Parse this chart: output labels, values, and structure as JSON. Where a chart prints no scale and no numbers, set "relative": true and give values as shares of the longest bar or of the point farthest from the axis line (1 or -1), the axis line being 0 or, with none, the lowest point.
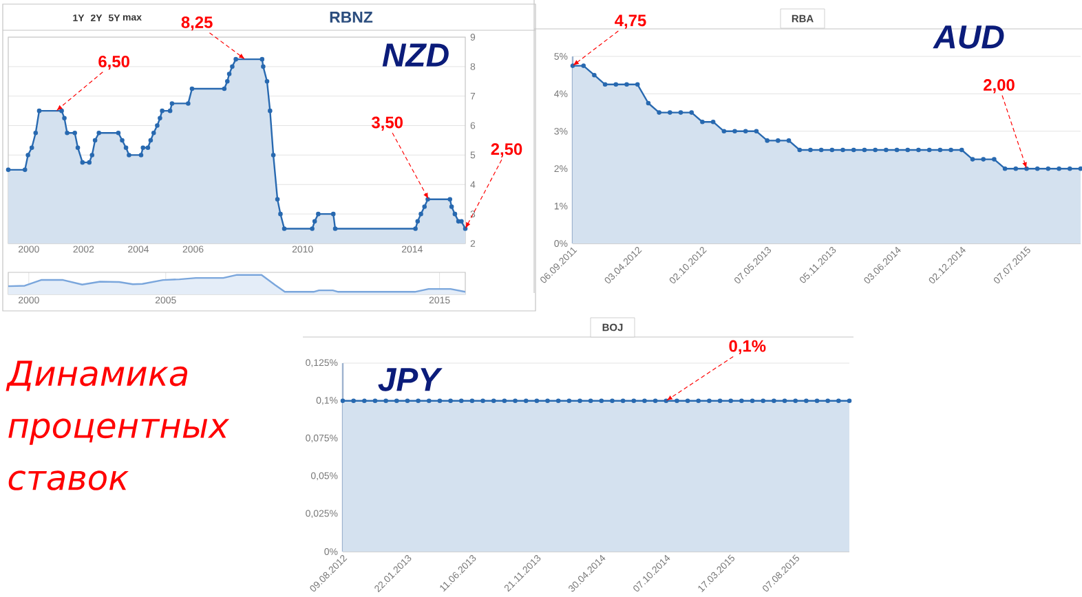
{
  "chart_data": [
    {
      "type": "area",
      "title": "RBNZ",
      "subtitle": "NZD",
      "x": [
        1999.25,
        1999.86,
        1999.97,
        2000.11,
        2000.25,
        2000.38,
        2001.2,
        2001.3,
        2001.4,
        2001.68,
        2001.79,
        2001.96,
        2002.21,
        2002.31,
        2002.42,
        2002.56,
        2003.27,
        2003.41,
        2003.55,
        2003.66,
        2004.1,
        2004.17,
        2004.35,
        2004.45,
        2004.56,
        2004.69,
        2004.79,
        2004.87,
        2005.16,
        2005.23,
        2005.82,
        2005.96,
        2007.14,
        2007.25,
        2007.32,
        2007.43,
        2007.56,
        2008.52,
        2008.56,
        2008.7,
        2008.81,
        2008.93,
        2009.08,
        2009.19,
        2009.33,
        2010.35,
        2010.44,
        2010.57,
        2011.12,
        2011.19,
        2014.12,
        2014.2,
        2014.32,
        2014.45,
        2014.57,
        2015.38,
        2015.44,
        2015.56,
        2015.69,
        2015.8,
        2015.94
      ],
      "values": [
        4.5,
        4.5,
        5.0,
        5.25,
        5.75,
        6.5,
        6.5,
        6.25,
        5.75,
        5.75,
        5.25,
        4.75,
        4.75,
        5.0,
        5.5,
        5.75,
        5.75,
        5.5,
        5.25,
        5.0,
        5.0,
        5.25,
        5.25,
        5.5,
        5.75,
        6.0,
        6.25,
        6.5,
        6.5,
        6.75,
        6.75,
        7.25,
        7.25,
        7.5,
        7.75,
        8.0,
        8.25,
        8.25,
        8.0,
        7.5,
        6.5,
        5.0,
        3.5,
        3.0,
        2.5,
        2.5,
        2.75,
        3.0,
        3.0,
        2.5,
        2.5,
        2.75,
        3.0,
        3.25,
        3.5,
        3.5,
        3.25,
        3.0,
        2.75,
        2.75,
        2.5
      ],
      "color": "#2869b0",
      "xlim": [
        1999.25,
        2015.94
      ],
      "ylim": [
        2,
        9
      ],
      "xticks": [
        2000,
        2002,
        2004,
        2006,
        2010,
        2014
      ],
      "yticks": [
        2,
        3,
        4,
        5,
        6,
        7,
        8,
        9
      ],
      "grid": "y",
      "marker": "circle",
      "annotations": [
        "1Y",
        "2Y",
        "5Y",
        "max",
        {
          "text": "6,50",
          "x": 2001.0,
          "y": 6.5
        },
        {
          "text": "8,25",
          "x": 2007.9,
          "y": 8.25
        },
        {
          "text": "3,50",
          "x": 2014.6,
          "y": 3.5
        },
        {
          "text": "2,50",
          "x": 2015.94,
          "y": 2.5
        }
      ]
    },
    {
      "type": "area",
      "relative": true,
      "x": [
        1999.25,
        1999.85,
        2000.45,
        2001.25,
        2001.95,
        2002.6,
        2003.3,
        2003.8,
        2004.15,
        2004.9,
        2005.5,
        2006.1,
        2007.1,
        2007.6,
        2008.5,
        2009.0,
        2009.35,
        2010.4,
        2010.6,
        2011.1,
        2011.3,
        2014.1,
        2014.6,
        2015.4,
        2015.94
      ],
      "values": [
        0.33,
        0.36,
        0.7,
        0.7,
        0.43,
        0.6,
        0.58,
        0.45,
        0.47,
        0.7,
        0.74,
        0.82,
        0.82,
        1.0,
        1.0,
        0.4,
        0.0,
        0.0,
        0.09,
        0.09,
        0.0,
        0.0,
        0.17,
        0.17,
        0.0
      ],
      "color": "#7aa6dc",
      "xlim": [
        1999.25,
        2015.94
      ],
      "xticks": [
        2000,
        2005,
        2015
      ],
      "grid": "x"
    },
    {
      "type": "area",
      "title": "RBA",
      "subtitle": "AUD",
      "categories": [
        "06.09.2011",
        null,
        null,
        null,
        null,
        null,
        "03.04.2012",
        null,
        null,
        null,
        null,
        null,
        "02.10.2012",
        null,
        null,
        null,
        null,
        null,
        "07.05.2013",
        null,
        null,
        null,
        null,
        null,
        "05.11.2013",
        null,
        null,
        null,
        null,
        null,
        "03.06.2014",
        null,
        null,
        null,
        null,
        null,
        "02.12.2014",
        null,
        null,
        null,
        null,
        null,
        "07.07.2015",
        null,
        null,
        null,
        null,
        null
      ],
      "values": [
        4.75,
        4.75,
        4.5,
        4.25,
        4.25,
        4.25,
        4.25,
        3.75,
        3.5,
        3.5,
        3.5,
        3.5,
        3.25,
        3.25,
        3.0,
        3.0,
        3.0,
        3.0,
        2.75,
        2.75,
        2.75,
        2.5,
        2.5,
        2.5,
        2.5,
        2.5,
        2.5,
        2.5,
        2.5,
        2.5,
        2.5,
        2.5,
        2.5,
        2.5,
        2.5,
        2.5,
        2.5,
        2.25,
        2.25,
        2.25,
        2.0,
        2.0,
        2.0,
        2.0,
        2.0,
        2.0,
        2.0,
        2.0
      ],
      "color": "#2869b0",
      "ylim": [
        0,
        5
      ],
      "yticks": [
        {
          "value": 0,
          "label": "0%"
        },
        {
          "value": 1,
          "label": "1%"
        },
        {
          "value": 2,
          "label": "2%"
        },
        {
          "value": 3,
          "label": "3%"
        },
        {
          "value": 4,
          "label": "4%"
        },
        {
          "value": 5,
          "label": "5%"
        }
      ],
      "grid": "y",
      "marker": "circle",
      "annotations": [
        {
          "text": "4,75",
          "x": "06.09.2011",
          "y": 4.75
        },
        {
          "text": "2,00",
          "x": "07.07.2015",
          "y": 2
        }
      ]
    },
    {
      "type": "other",
      "title": "Динамика процентных ставок"
    },
    {
      "type": "area",
      "title": "BOJ",
      "subtitle": "JPY",
      "categories": [
        "09.08.2012",
        null,
        null,
        null,
        null,
        null,
        "22.01.2013",
        null,
        null,
        null,
        null,
        null,
        "11.06.2013",
        null,
        null,
        null,
        null,
        null,
        "21.11.2013",
        null,
        null,
        null,
        null,
        null,
        "30.04.2014",
        null,
        null,
        null,
        null,
        null,
        "07.10.2014",
        null,
        null,
        null,
        null,
        null,
        "17.03.2015",
        null,
        null,
        null,
        null,
        null,
        "07.08.2015",
        null,
        null,
        null,
        null,
        null
      ],
      "values": [
        0.1,
        0.1,
        0.1,
        0.1,
        0.1,
        0.1,
        0.1,
        0.1,
        0.1,
        0.1,
        0.1,
        0.1,
        0.1,
        0.1,
        0.1,
        0.1,
        0.1,
        0.1,
        0.1,
        0.1,
        0.1,
        0.1,
        0.1,
        0.1,
        0.1,
        0.1,
        0.1,
        0.1,
        0.1,
        0.1,
        0.1,
        0.1,
        0.1,
        0.1,
        0.1,
        0.1,
        0.1,
        0.1,
        0.1,
        0.1,
        0.1,
        0.1,
        0.1,
        0.1,
        0.1,
        0.1,
        0.1,
        0.1
      ],
      "color": "#2869b0",
      "ylim": [
        0,
        0.125
      ],
      "yticks": [
        {
          "value": 0,
          "label": "0%"
        },
        {
          "value": 0.025,
          "label": "0,025%"
        },
        {
          "value": 0.05,
          "label": "0,05%"
        },
        {
          "value": 0.075,
          "label": "0,075%"
        },
        {
          "value": 0.1,
          "label": "0,1%"
        },
        {
          "value": 0.125,
          "label": "0,125%"
        }
      ],
      "grid": "y",
      "marker": "circle",
      "annotations": [
        {
          "text": "0,1%",
          "x": "07.10.2014",
          "y": 0.1
        }
      ]
    }
  ]
}
